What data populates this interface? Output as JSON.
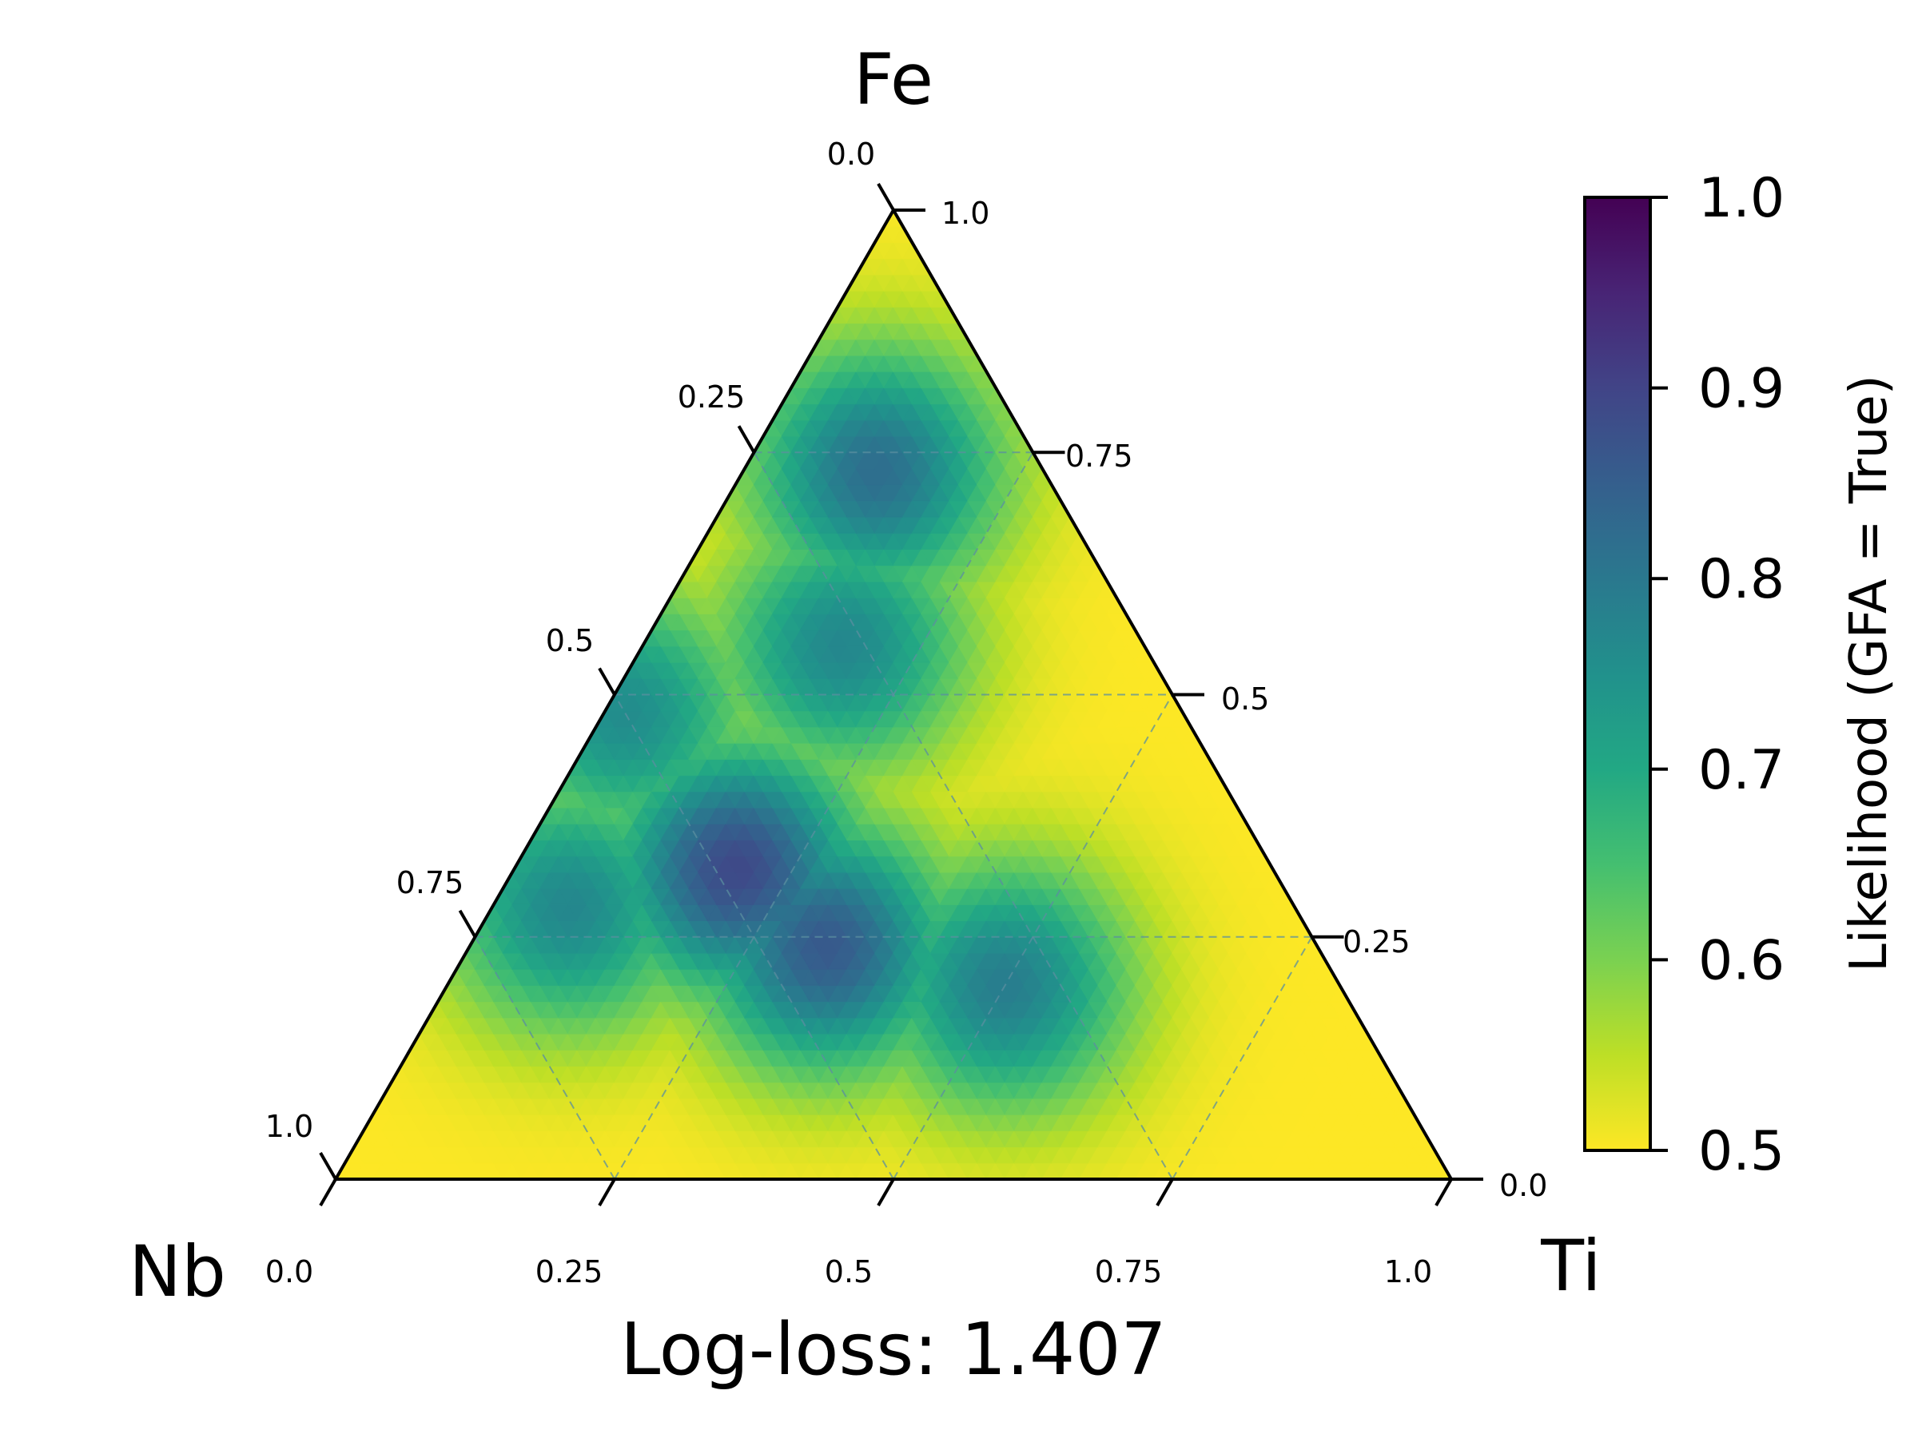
{
  "chart_data": {
    "type": "heatmap",
    "subtype": "ternary",
    "vertices": {
      "top": "Fe",
      "left": "Nb",
      "right": "Ti"
    },
    "xlabel": "Log-loss: 1.407",
    "ticks": {
      "left_labels": [
        "0.0",
        "0.25",
        "0.5",
        "0.75",
        "1.0"
      ],
      "right_labels": [
        "1.0",
        "0.75",
        "0.5",
        "0.25",
        "0.0"
      ],
      "bottom_labels": [
        "0.0",
        "0.25",
        "0.5",
        "0.75",
        "1.0"
      ]
    },
    "grid": true,
    "colorbar": {
      "label": "Likelihood (GFA = True)",
      "range": [
        0.5,
        1.0
      ],
      "tick_values": [
        0.5,
        0.6,
        0.7,
        0.8,
        0.9,
        1.0
      ],
      "tick_labels": [
        "0.5",
        "0.6",
        "0.7",
        "0.8",
        "0.9",
        "1.0"
      ],
      "colormap": "viridis_r",
      "placement": "right"
    },
    "field_peaks": [
      {
        "Fe": 0.32,
        "Ti": 0.2,
        "Nb": 0.48,
        "value": 0.89
      },
      {
        "Fe": 0.24,
        "Ti": 0.32,
        "Nb": 0.44,
        "value": 0.86
      },
      {
        "Fe": 0.73,
        "Ti": 0.12,
        "Nb": 0.15,
        "value": 0.82
      },
      {
        "Fe": 0.28,
        "Ti": 0.07,
        "Nb": 0.65,
        "value": 0.77
      },
      {
        "Fe": 0.2,
        "Ti": 0.5,
        "Nb": 0.3,
        "value": 0.79
      },
      {
        "Fe": 0.55,
        "Ti": 0.18,
        "Nb": 0.27,
        "value": 0.77
      },
      {
        "Fe": 0.48,
        "Ti": 0.02,
        "Nb": 0.5,
        "value": 0.76
      }
    ],
    "field_base": 0.5
  }
}
